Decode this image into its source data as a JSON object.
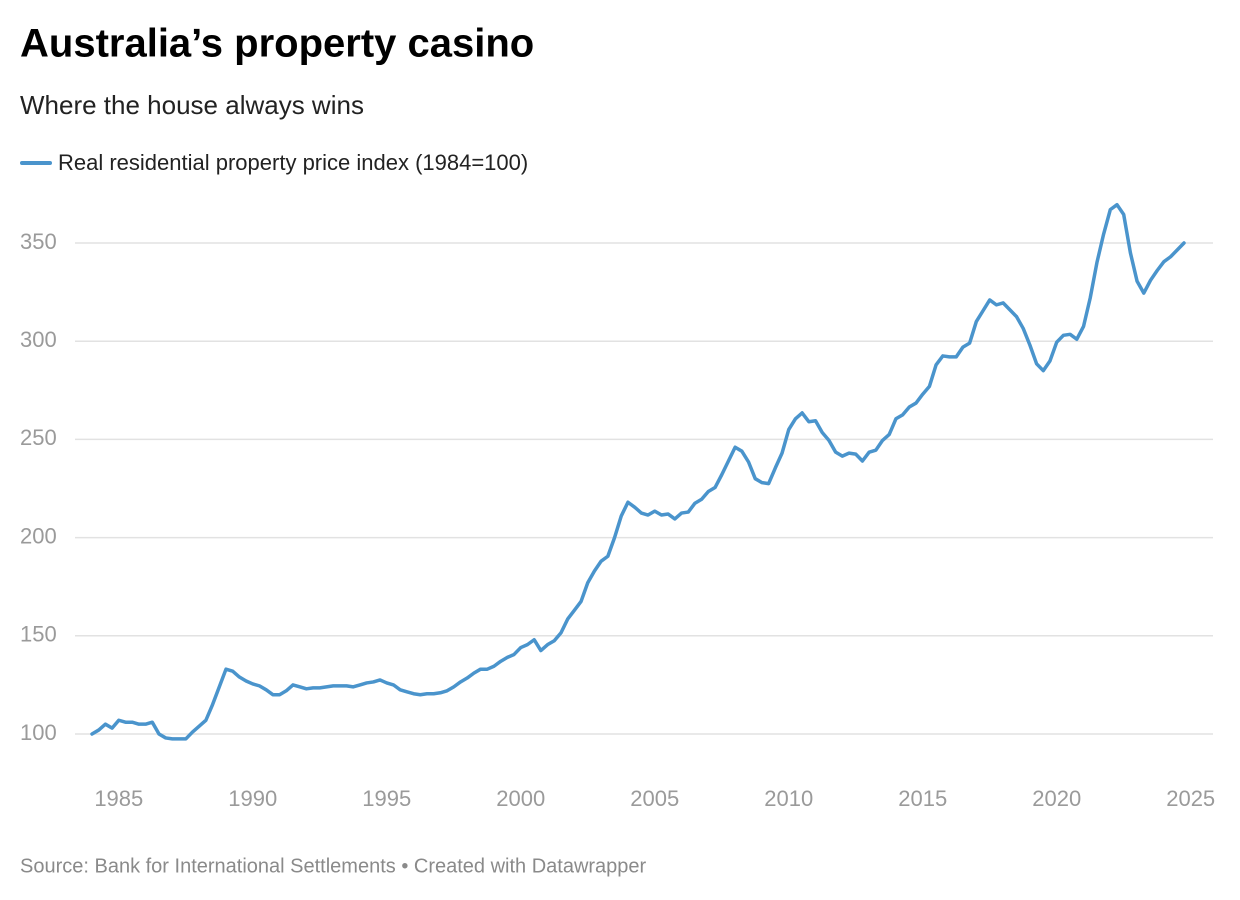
{
  "chart_data": {
    "type": "line",
    "title": "Australia’s property casino",
    "subtitle": "Where the house always wins",
    "source": "Source: Bank for International Settlements • Created with Datawrapper",
    "x": [
      1984,
      1984.25,
      1984.5,
      1984.75,
      1985,
      1985.25,
      1985.5,
      1985.75,
      1986,
      1986.25,
      1986.5,
      1986.75,
      1987,
      1987.25,
      1987.5,
      1987.75,
      1988,
      1988.25,
      1988.5,
      1988.75,
      1989,
      1989.25,
      1989.5,
      1989.75,
      1990,
      1990.25,
      1990.5,
      1990.75,
      1991,
      1991.25,
      1991.5,
      1991.75,
      1992,
      1992.25,
      1992.5,
      1992.75,
      1993,
      1993.25,
      1993.5,
      1993.75,
      1994,
      1994.25,
      1994.5,
      1994.75,
      1995,
      1995.25,
      1995.5,
      1995.75,
      1996,
      1996.25,
      1996.5,
      1996.75,
      1997,
      1997.25,
      1997.5,
      1997.75,
      1998,
      1998.25,
      1998.5,
      1998.75,
      1999,
      1999.25,
      1999.5,
      1999.75,
      2000,
      2000.25,
      2000.5,
      2000.75,
      2001,
      2001.25,
      2001.5,
      2001.75,
      2002,
      2002.25,
      2002.5,
      2002.75,
      2003,
      2003.25,
      2003.5,
      2003.75,
      2004,
      2004.25,
      2004.5,
      2004.75,
      2005,
      2005.25,
      2005.5,
      2005.75,
      2006,
      2006.25,
      2006.5,
      2006.75,
      2007,
      2007.25,
      2007.5,
      2007.75,
      2008,
      2008.25,
      2008.5,
      2008.75,
      2009,
      2009.25,
      2009.5,
      2009.75,
      2010,
      2010.25,
      2010.5,
      2010.75,
      2011,
      2011.25,
      2011.5,
      2011.75,
      2012,
      2012.25,
      2012.5,
      2012.75,
      2013,
      2013.25,
      2013.5,
      2013.75,
      2014,
      2014.25,
      2014.5,
      2014.75,
      2015,
      2015.25,
      2015.5,
      2015.75,
      2016,
      2016.25,
      2016.5,
      2016.75,
      2017,
      2017.25,
      2017.5,
      2017.75,
      2018,
      2018.25,
      2018.5,
      2018.75,
      2019,
      2019.25,
      2019.5,
      2019.75,
      2020,
      2020.25,
      2020.5,
      2020.75,
      2021,
      2021.25,
      2021.5,
      2021.75,
      2022,
      2022.25,
      2022.5,
      2022.75,
      2023,
      2023.25,
      2023.5,
      2023.75,
      2024,
      2024.25,
      2024.5,
      2024.75
    ],
    "series": [
      {
        "name": "Real residential property price index (1984=100)",
        "color": "#4a94cc",
        "values": [
          100,
          102,
          105,
          103,
          107,
          106,
          106,
          105,
          105,
          106,
          100,
          98,
          97.5,
          97.5,
          97.5,
          101,
          104,
          107,
          115,
          124,
          133,
          132,
          129,
          127,
          125.5,
          124.5,
          122.5,
          120,
          120,
          122,
          125,
          124,
          123,
          123.5,
          123.5,
          124,
          124.5,
          124.5,
          124.5,
          124,
          125,
          126,
          126.5,
          127.5,
          126,
          125,
          122.5,
          121.5,
          120.5,
          120,
          120.5,
          120.5,
          121,
          122,
          124,
          126.5,
          128.5,
          131,
          133,
          133,
          134.5,
          137,
          139,
          140.5,
          144,
          145.5,
          148,
          142.5,
          145.5,
          147.5,
          151.5,
          158.5,
          163,
          167.5,
          177,
          183,
          188,
          190.5,
          200,
          211,
          218,
          215.5,
          212.5,
          211.5,
          213.5,
          211.5,
          212,
          209.5,
          212.5,
          213,
          217.5,
          219.5,
          223.5,
          225.5,
          232,
          239,
          246,
          244,
          238.5,
          230,
          228,
          227.5,
          235.5,
          243,
          255,
          260.5,
          263.5,
          259,
          259.5,
          253.5,
          249.5,
          243.5,
          241.5,
          243,
          242.5,
          239,
          243.5,
          244.5,
          249.5,
          252.5,
          260.5,
          262.5,
          266.5,
          268.5,
          273,
          277,
          288,
          292.5,
          292,
          292,
          297,
          299,
          310,
          315.5,
          321,
          318.5,
          319.5,
          316,
          312.5,
          306.5,
          298,
          288.5,
          285,
          290,
          299.5,
          303,
          303.5,
          301,
          307.5,
          322,
          340,
          354.5,
          367,
          369.5,
          364.5,
          345,
          330.5,
          324.5,
          331,
          336,
          340.5,
          343,
          346.5,
          350
        ]
      }
    ],
    "xlim": [
      1984,
      2024.75
    ],
    "xticks": [
      1985,
      1990,
      1995,
      2000,
      2005,
      2010,
      2015,
      2020,
      2025
    ],
    "ylim": [
      100,
      350
    ],
    "yticks": [
      100,
      150,
      200,
      250,
      300,
      350
    ],
    "grid": true
  }
}
